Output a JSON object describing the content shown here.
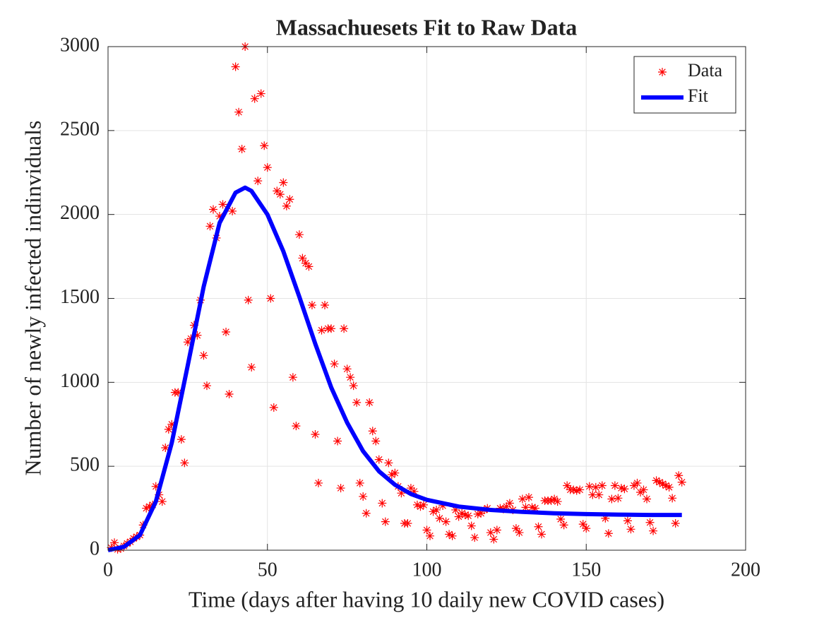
{
  "chart_data": {
    "type": "scatter-line",
    "title": "Massachuesets Fit to Raw Data",
    "x_label": "Time (days after having 10 daily new COVID cases)",
    "y_label": "Number of newly infected indinviduals",
    "xlim": [
      0,
      200
    ],
    "xticks": [
      0,
      50,
      100,
      150,
      200
    ],
    "ylim": [
      0,
      3000
    ],
    "yticks": [
      0,
      500,
      1000,
      1500,
      2000,
      2500,
      3000
    ],
    "grid": true,
    "legend": "northeast",
    "series": [
      {
        "name": "Data",
        "color": "#ff0000",
        "style": "marker",
        "x": [
          1,
          2,
          3,
          4,
          5,
          6,
          7,
          8,
          9,
          10,
          11,
          12,
          13,
          14,
          15,
          16,
          17,
          18,
          19,
          20,
          21,
          22,
          23,
          24,
          25,
          26,
          27,
          28,
          29,
          30,
          31,
          32,
          33,
          34,
          35,
          36,
          37,
          38,
          39,
          40,
          41,
          42,
          43,
          44,
          45,
          46,
          47,
          48,
          49,
          50,
          51,
          52,
          53,
          54,
          55,
          56,
          57,
          58,
          59,
          60,
          61,
          62,
          63,
          64,
          65,
          66,
          67,
          68,
          69,
          70,
          71,
          72,
          73,
          74,
          75,
          76,
          77,
          78,
          79,
          80,
          81,
          82,
          83,
          84,
          85,
          86,
          87,
          88,
          89,
          90,
          91,
          92,
          93,
          94,
          95,
          96,
          97,
          98,
          99,
          100,
          101,
          102,
          103,
          104,
          105,
          106,
          107,
          108,
          109,
          110,
          111,
          112,
          113,
          114,
          115,
          116,
          117,
          118,
          119,
          120,
          121,
          122,
          123,
          124,
          125,
          126,
          127,
          128,
          129,
          130,
          131,
          132,
          133,
          134,
          135,
          136,
          137,
          138,
          139,
          140,
          141,
          142,
          143,
          144,
          145,
          146,
          147,
          148,
          149,
          150,
          151,
          152,
          153,
          154,
          155,
          156,
          157,
          158,
          159,
          160,
          161,
          162,
          163,
          164,
          165,
          166,
          167,
          168,
          169,
          170,
          171,
          172,
          173,
          174,
          175,
          176,
          177,
          178,
          179,
          180
        ],
        "values": [
          15,
          45,
          5,
          10,
          25,
          40,
          50,
          70,
          80,
          90,
          150,
          250,
          260,
          270,
          380,
          330,
          290,
          610,
          720,
          750,
          940,
          940,
          660,
          520,
          1240,
          1260,
          1340,
          1280,
          1490,
          1160,
          980,
          1930,
          2030,
          1860,
          1990,
          2060,
          1300,
          930,
          2020,
          2880,
          2610,
          2390,
          3000,
          1490,
          1090,
          2690,
          2200,
          2720,
          2410,
          2280,
          1500,
          850,
          2140,
          2120,
          2190,
          2050,
          2090,
          1030,
          740,
          1880,
          1740,
          1710,
          1690,
          1460,
          690,
          400,
          1310,
          1460,
          1320,
          1320,
          1110,
          650,
          370,
          1320,
          1080,
          1030,
          980,
          880,
          400,
          320,
          220,
          880,
          710,
          650,
          540,
          280,
          170,
          520,
          450,
          460,
          380,
          340,
          160,
          160,
          370,
          350,
          270,
          260,
          270,
          120,
          85,
          230,
          240,
          190,
          265,
          170,
          95,
          85,
          240,
          200,
          220,
          210,
          205,
          145,
          75,
          215,
          220,
          240,
          250,
          105,
          65,
          120,
          250,
          245,
          260,
          280,
          240,
          130,
          105,
          305,
          255,
          315,
          255,
          250,
          140,
          95,
          295,
          295,
          295,
          305,
          290,
          185,
          150,
          385,
          360,
          360,
          355,
          360,
          155,
          130,
          380,
          330,
          375,
          330,
          385,
          190,
          100,
          305,
          385,
          310,
          370,
          365,
          175,
          125,
          385,
          400,
          345,
          360,
          305,
          165,
          115,
          415,
          405,
          395,
          385,
          375,
          310,
          160,
          445,
          405
        ]
      },
      {
        "name": "Fit",
        "color": "#0000ff",
        "style": "line",
        "x": [
          0,
          5,
          10,
          15,
          20,
          25,
          30,
          35,
          40,
          43,
          45,
          50,
          55,
          60,
          65,
          70,
          75,
          80,
          85,
          90,
          95,
          100,
          110,
          120,
          130,
          140,
          150,
          160,
          170,
          180
        ],
        "values": [
          0,
          20,
          90,
          290,
          640,
          1100,
          1570,
          1950,
          2130,
          2160,
          2140,
          2000,
          1780,
          1510,
          1230,
          970,
          760,
          590,
          470,
          390,
          335,
          300,
          260,
          240,
          228,
          220,
          215,
          212,
          210,
          210
        ]
      }
    ]
  }
}
